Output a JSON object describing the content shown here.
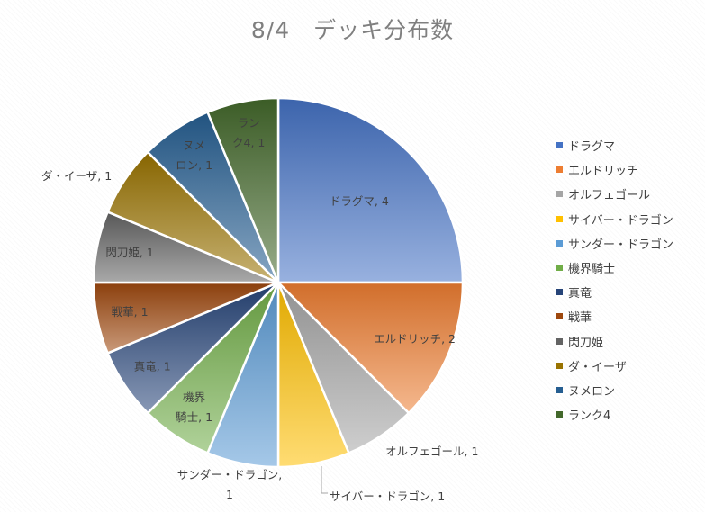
{
  "chart_data": {
    "type": "pie",
    "title": "8/4　デッキ分布数",
    "categories": [
      "ドラグマ",
      "エルドリッチ",
      "オルフェゴール",
      "サイバー・ドラゴン",
      "サンダー・ドラゴン",
      "機界騎士",
      "真竜",
      "戦華",
      "閃刀姫",
      "ダ・イーザ",
      "ヌメロン",
      "ランク4"
    ],
    "values": [
      4,
      2,
      1,
      1,
      1,
      1,
      1,
      1,
      1,
      1,
      1,
      1
    ],
    "colors": [
      "#4472c4",
      "#ed7d31",
      "#a5a5a5",
      "#ffc000",
      "#5b9bd5",
      "#70ad47",
      "#264478",
      "#9e480e",
      "#636363",
      "#997300",
      "#255e91",
      "#43682b"
    ],
    "data_labels": [
      "ドラグマ, 4",
      "エルドリッチ, 2",
      "オルフェゴール, 1",
      "サイバー・ドラゴン, 1",
      "サンダー・ドラゴン, 1",
      "機界騎士, 1",
      "真竜, 1",
      "戦華, 1",
      "閃刀姫, 1",
      "ダ・イーザ, 1",
      "ヌメロン, 1",
      "ランク4, 1"
    ],
    "legend_position": "right"
  }
}
